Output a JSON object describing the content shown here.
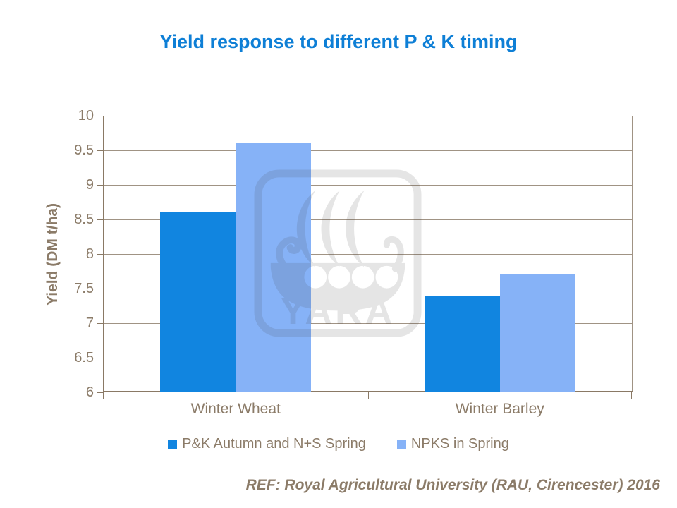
{
  "chart_data": {
    "type": "bar",
    "title": "Yield response to different P & K timing",
    "categories": [
      "Winter Wheat",
      "Winter Barley"
    ],
    "series": [
      {
        "name": "P&K Autumn and N+S Spring",
        "color": "#1185E0",
        "values": [
          8.6,
          7.4
        ]
      },
      {
        "name": "NPKS in Spring",
        "color": "#86B2F7",
        "values": [
          9.6,
          7.7
        ]
      }
    ],
    "xlabel": "",
    "ylabel": "Yield (DM t/ha)",
    "ylim": [
      6,
      10
    ],
    "ytick_step": 0.5,
    "yticks": [
      6,
      6.5,
      7,
      7.5,
      8,
      8.5,
      9,
      9.5,
      10
    ],
    "grid": true,
    "legend_position": "bottom",
    "colors": {
      "title": "#0E7FD6",
      "axis_text": "#8B7B68",
      "gridline": "#A09384",
      "axis_line": "#8A7965"
    }
  },
  "watermark": {
    "label": "YARA"
  },
  "footer": {
    "ref_text": "REF: Royal Agricultural University (RAU, Cirencester) 2016"
  }
}
